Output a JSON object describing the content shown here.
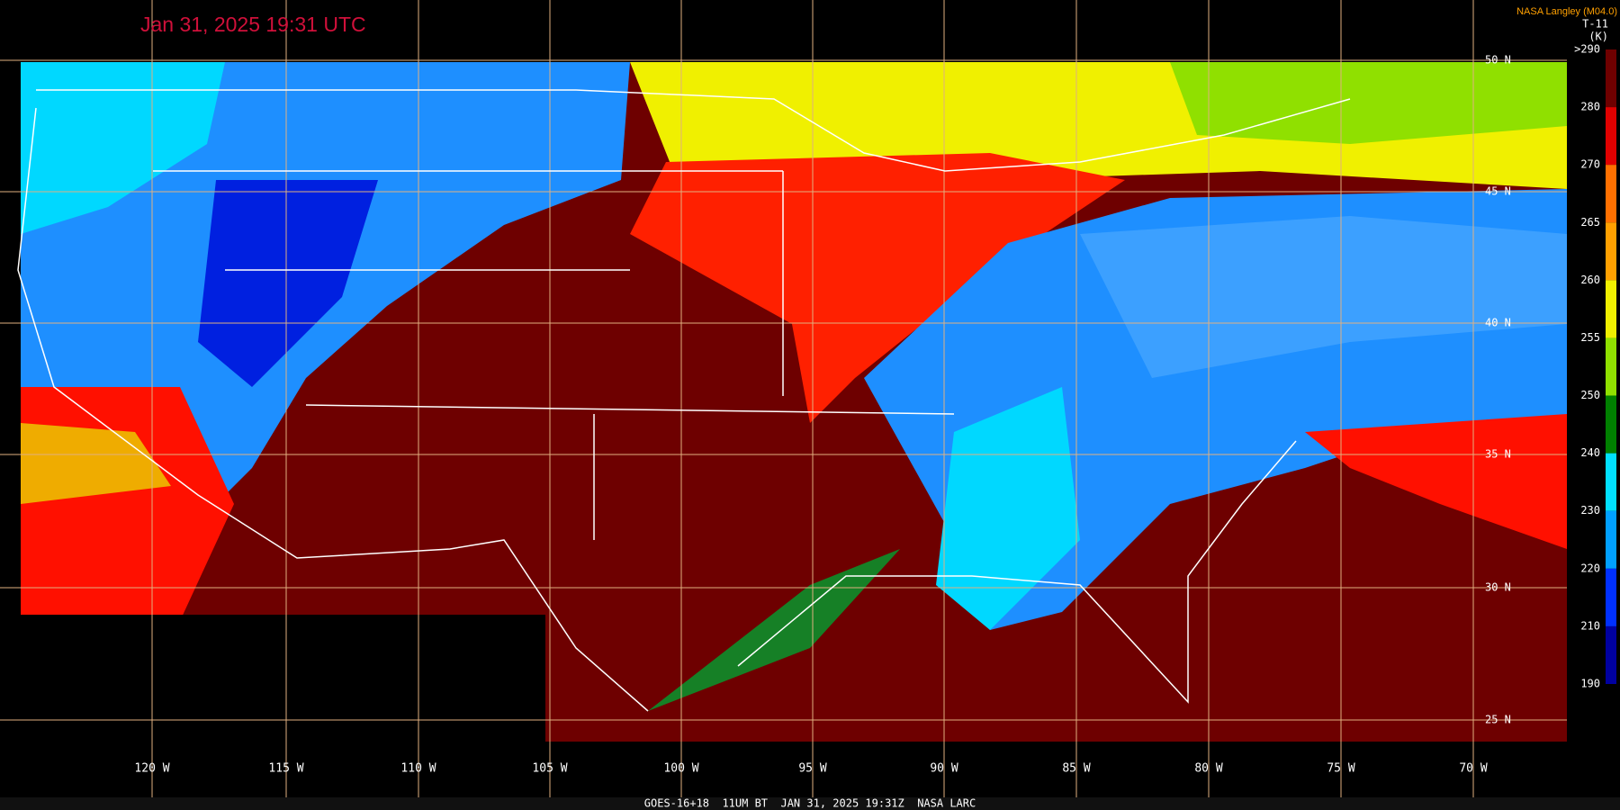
{
  "header": {
    "title": "Jan 31, 2025 19:31 UTC",
    "source": "NASA Langley (M04.0)"
  },
  "legend": {
    "title": "T-11",
    "unit": "(K)",
    "labels": [
      ">290",
      "280",
      "270",
      "265",
      "260",
      "255",
      "250",
      "240",
      "230",
      "220",
      "210",
      "190"
    ]
  },
  "latitude_labels": [
    "50 N",
    "45 N",
    "40 N",
    "35 N",
    "30 N",
    "25 N"
  ],
  "longitude_labels": [
    "120 W",
    "115 W",
    "110 W",
    "105 W",
    "100 W",
    "95 W",
    "90 W",
    "85 W",
    "80 W",
    "75 W",
    "70 W"
  ],
  "footer": "GOES-16+18  11UM BT  JAN 31, 2025 19:31Z  NASA LARC"
}
